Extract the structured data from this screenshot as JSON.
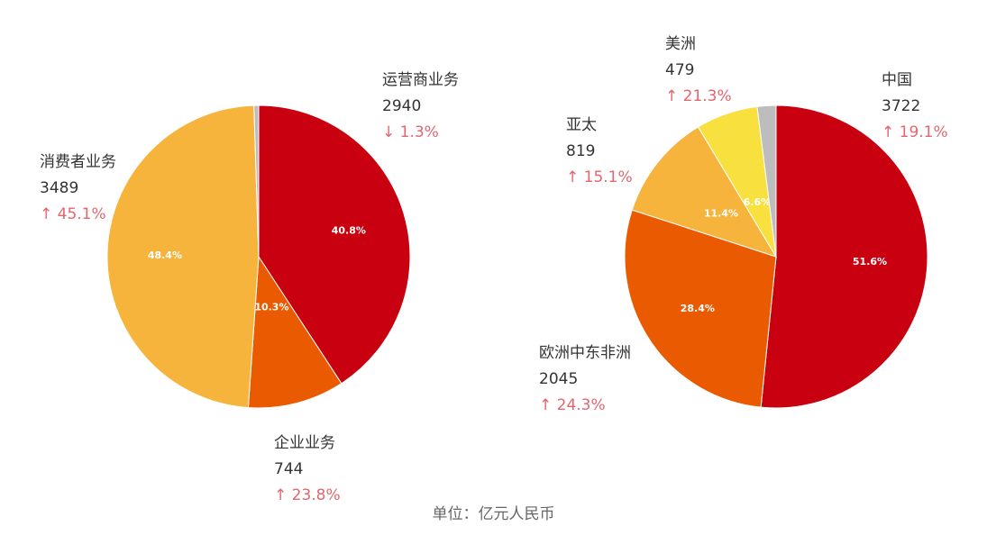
{
  "chart_data": [
    {
      "type": "pie",
      "id": "business",
      "slices": [
        {
          "name": "运营商业务",
          "value": 2940,
          "percent": 40.8,
          "change": "↓ 1.3%",
          "color": "#c8000f"
        },
        {
          "name": "企业业务",
          "value": 744,
          "percent": 10.3,
          "change": "↑ 23.8%",
          "color": "#ea5a00"
        },
        {
          "name": "消费者业务",
          "value": 3489,
          "percent": 48.4,
          "change": "↑ 45.1%",
          "color": "#f6b43c"
        },
        {
          "name": "",
          "value": null,
          "percent": 0.5,
          "change": "",
          "color": "#bdbdbd"
        }
      ]
    },
    {
      "type": "pie",
      "id": "region",
      "slices": [
        {
          "name": "中国",
          "value": 3722,
          "percent": 51.6,
          "change": "↑ 19.1%",
          "color": "#c8000f"
        },
        {
          "name": "欧洲中东非洲",
          "value": 2045,
          "percent": 28.4,
          "change": "↑ 24.3%",
          "color": "#ea5a00"
        },
        {
          "name": "亚太",
          "value": 819,
          "percent": 11.4,
          "change": "↑ 15.1%",
          "color": "#f6b43c"
        },
        {
          "name": "美洲",
          "value": 479,
          "percent": 6.6,
          "change": "↑ 21.3%",
          "color": "#f8e03e"
        },
        {
          "name": "",
          "value": null,
          "percent": 2.0,
          "change": "",
          "color": "#bdbdbd"
        }
      ]
    }
  ],
  "labels": {
    "carrier": {
      "name": "运营商业务",
      "value": "2940",
      "change": "↓ 1.3%"
    },
    "enterprise": {
      "name": "企业业务",
      "value": "744",
      "change": "↑ 23.8%"
    },
    "consumer": {
      "name": "消费者业务",
      "value": "3489",
      "change": "↑ 45.1%"
    },
    "china": {
      "name": "中国",
      "value": "3722",
      "change": "↑ 19.1%"
    },
    "emea": {
      "name": "欧洲中东非洲",
      "value": "2045",
      "change": "↑ 24.3%"
    },
    "apac": {
      "name": "亚太",
      "value": "819",
      "change": "↑ 15.1%"
    },
    "americas": {
      "name": "美洲",
      "value": "479",
      "change": "↑ 21.3%"
    }
  },
  "unit_note": "单位：亿元人民币"
}
